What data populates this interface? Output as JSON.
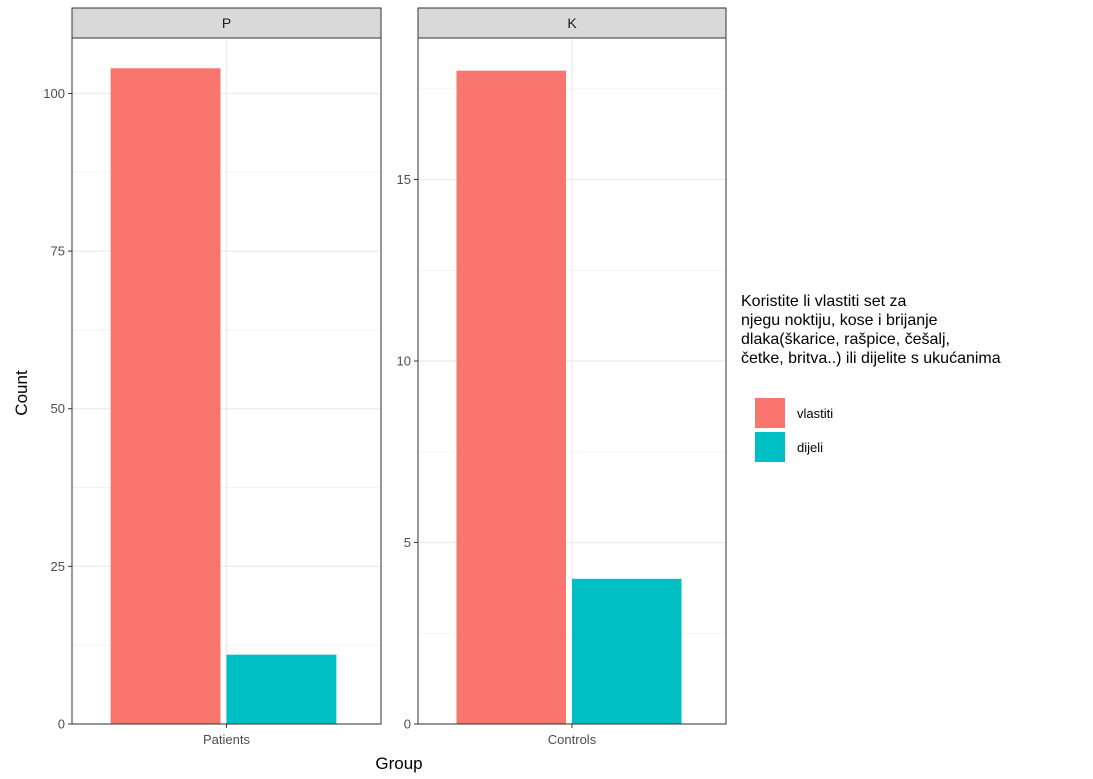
{
  "chart_data": {
    "type": "bar",
    "xlabel": "Group",
    "ylabel": "Count",
    "legend": {
      "title_lines": [
        "Koristite li vlastiti set za",
        "njegu noktiju, kose i brijanje",
        "dlaka(škarice, rašpice, češalj,",
        "četke, britva..) ili dijelite s ukućanima"
      ],
      "placement": "right",
      "entries": [
        {
          "label": "vlastiti",
          "color": "#F8766D"
        },
        {
          "label": "dijeli",
          "color": "#00BFC4"
        }
      ]
    },
    "grid": true,
    "facets": [
      {
        "strip": "P",
        "category": "Patients",
        "ylim": [
          0,
          108.8
        ],
        "y_ticks": [
          0,
          25,
          50,
          75,
          100
        ],
        "series": [
          {
            "name": "vlastiti",
            "values": [
              104
            ]
          },
          {
            "name": "dijeli",
            "values": [
              11
            ]
          }
        ]
      },
      {
        "strip": "K",
        "category": "Controls",
        "ylim": [
          0,
          18.9
        ],
        "y_ticks": [
          0,
          5,
          10,
          15
        ],
        "series": [
          {
            "name": "vlastiti",
            "values": [
              18
            ]
          },
          {
            "name": "dijeli",
            "values": [
              4
            ]
          }
        ]
      }
    ]
  }
}
